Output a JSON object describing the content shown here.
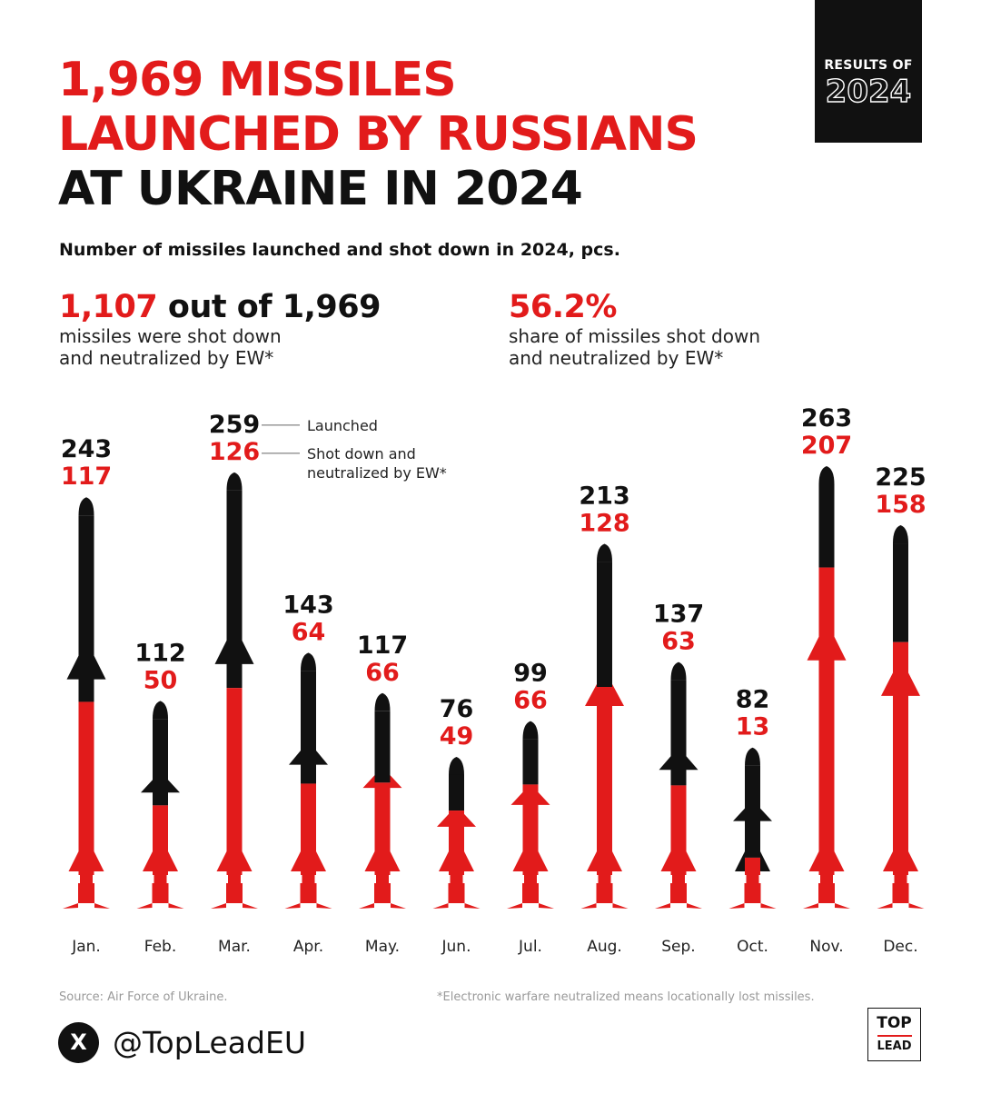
{
  "badge": {
    "line1": "RESULTS OF",
    "line2": "2024"
  },
  "title": {
    "line1": "1,969 MISSILES",
    "line2": "LAUNCHED BY RUSSIANS",
    "line3": "AT UKRAINE IN 2024"
  },
  "subtitle": "Number of missiles launched and shot down in 2024, pcs.",
  "stats": {
    "left": {
      "highlight": "1,107",
      "rest": " out of 1,969",
      "desc": "missiles were shot down\nand neutralized by EW*"
    },
    "right": {
      "highlight": "56.2%",
      "desc": "share of missiles shot down\nand neutralized by EW*"
    }
  },
  "chart_data": {
    "type": "bar",
    "title": "Number of missiles launched and shot down in 2024, pcs.",
    "categories": [
      "Jan.",
      "Feb.",
      "Mar.",
      "Apr.",
      "May.",
      "Jun.",
      "Jul.",
      "Aug.",
      "Sep.",
      "Oct.",
      "Nov.",
      "Dec."
    ],
    "series": [
      {
        "name": "Launched",
        "color": "#111111",
        "values": [
          243,
          112,
          259,
          143,
          117,
          76,
          99,
          213,
          137,
          82,
          263,
          225
        ]
      },
      {
        "name": "Shot down and\nneutralized by EW*",
        "color": "#e21b1b",
        "values": [
          117,
          50,
          126,
          64,
          66,
          49,
          66,
          128,
          63,
          13,
          207,
          158
        ]
      }
    ],
    "legend": {
      "launched": "Launched",
      "shot_down_line1": "Shot down and",
      "shot_down_line2": "neutralized by EW*",
      "placement": "next to Mar."
    },
    "ylim": [
      0,
      263
    ],
    "grid": false,
    "mark_shape": "missile"
  },
  "source": "Source: Air Force of Ukraine.",
  "footnote": "*Electronic warfare neutralized means locationally lost missiles.",
  "social": {
    "icon": "x-logo-icon",
    "icon_glyph": "X",
    "handle": "@TopLeadEU"
  },
  "logo": {
    "line1": "TOP",
    "line2": "LEAD"
  }
}
